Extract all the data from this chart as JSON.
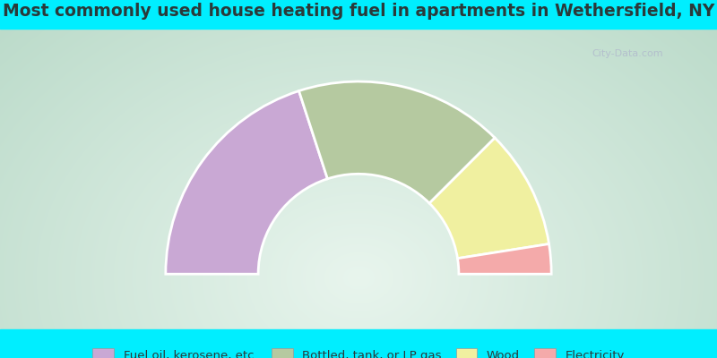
{
  "title": "Most commonly used house heating fuel in apartments in Wethersfield, NY",
  "segments": [
    {
      "label": "Fuel oil, kerosene, etc.",
      "value": 40,
      "color": "#C9A8D4"
    },
    {
      "label": "Bottled, tank, or LP gas",
      "value": 35,
      "color": "#B5C9A0"
    },
    {
      "label": "Wood",
      "value": 20,
      "color": "#F0F0A0"
    },
    {
      "label": "Electricity",
      "value": 5,
      "color": "#F4AAAA"
    }
  ],
  "bg_color_cyan": "#00EEFF",
  "title_color": "#2a3a3a",
  "title_fontsize": 13.5,
  "legend_fontsize": 9.5,
  "donut_outer": 1.0,
  "donut_inner": 0.52,
  "watermark": "City-Data.com",
  "bg_gradient_top": "#c8e0c8",
  "bg_gradient_mid": "#e8f5e8",
  "bg_gradient_corner": "#b8d8b8"
}
